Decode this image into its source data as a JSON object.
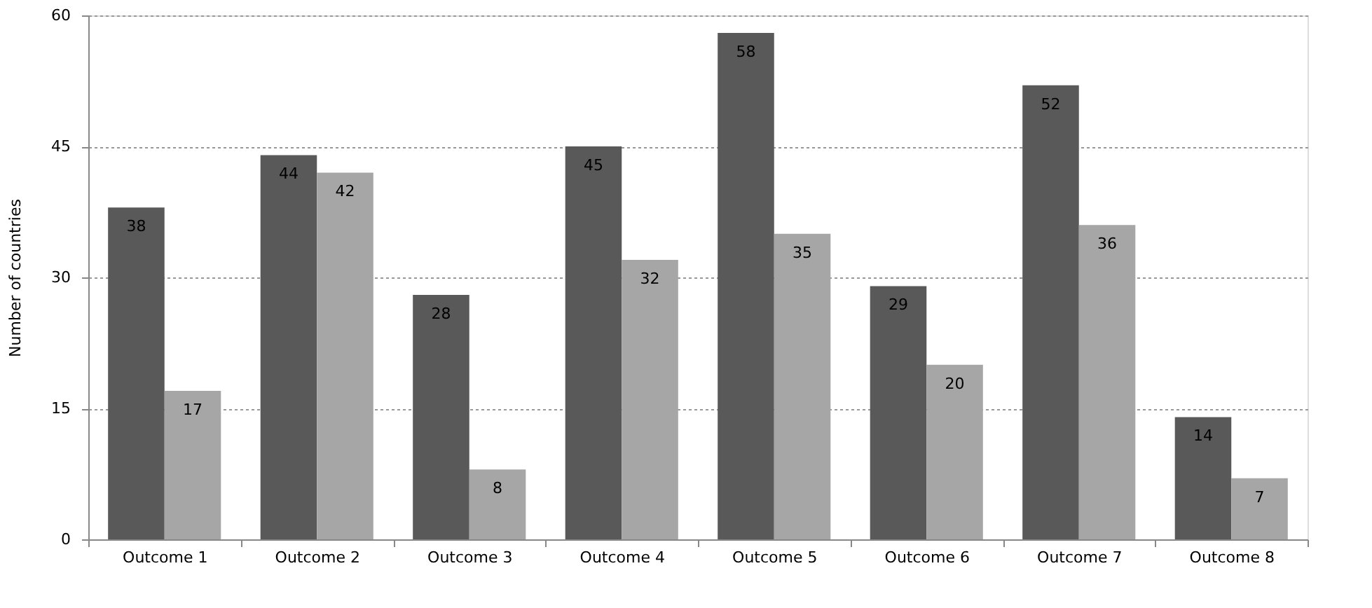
{
  "chart_data": {
    "type": "bar",
    "ylabel": "Number of countries",
    "categories": [
      "Outcome 1",
      "Outcome 2",
      "Outcome 3",
      "Outcome 4",
      "Outcome 5",
      "Outcome 6",
      "Outcome 7",
      "Outcome 8"
    ],
    "series": [
      {
        "color": "#595959",
        "values": [
          38,
          44,
          28,
          45,
          58,
          29,
          52,
          14
        ]
      },
      {
        "color": "#a6a6a6",
        "values": [
          17,
          42,
          8,
          32,
          35,
          20,
          36,
          7
        ]
      }
    ],
    "ylim": [
      0,
      60
    ],
    "yticks": [
      0,
      15,
      30,
      45,
      60
    ],
    "grid": "y",
    "data_labels": true,
    "legend": false
  }
}
